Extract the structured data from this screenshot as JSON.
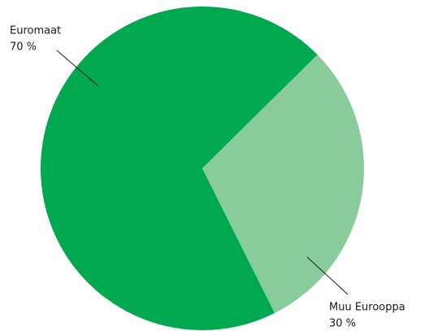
{
  "chart_data": {
    "type": "pie",
    "categories": [
      "Euromaat",
      "Muu Eurooppa"
    ],
    "values": [
      70,
      30
    ],
    "value_labels": [
      "70 %",
      "30 %"
    ],
    "colors": [
      "#00a84f",
      "#89cc9b"
    ]
  }
}
